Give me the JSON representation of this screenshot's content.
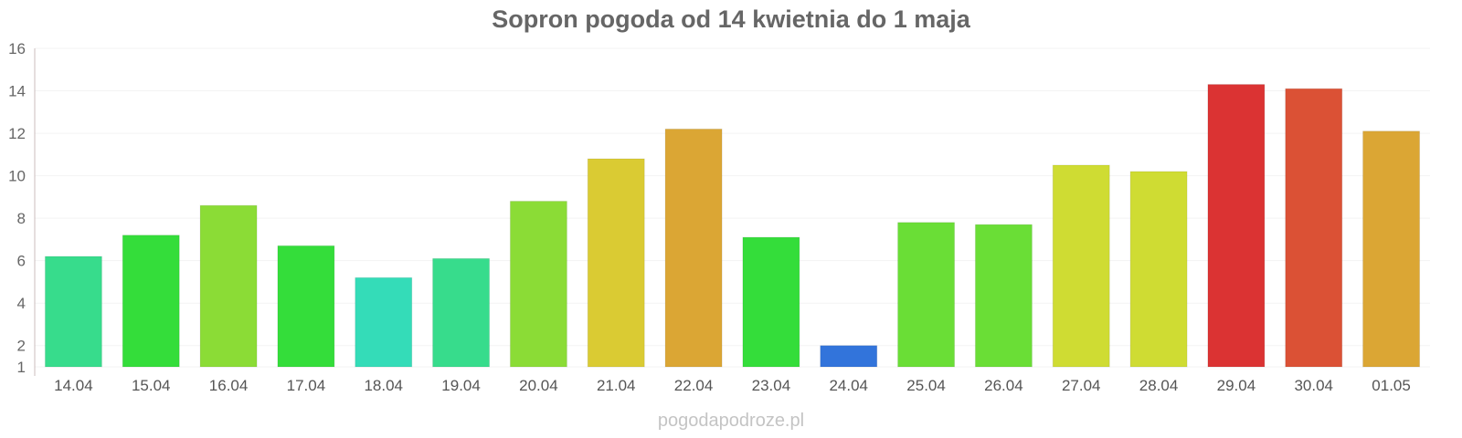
{
  "credit": "pogodapodroze.pl",
  "chart_data": {
    "type": "bar",
    "title": "Sopron pogoda od 14 kwietnia do 1 maja",
    "xlabel": "",
    "ylabel": "",
    "ylim": [
      1,
      16
    ],
    "yticks": [
      1,
      2,
      4,
      6,
      8,
      10,
      12,
      14,
      16
    ],
    "grid": true,
    "categories": [
      "14.04",
      "15.04",
      "16.04",
      "17.04",
      "18.04",
      "19.04",
      "20.04",
      "21.04",
      "22.04",
      "23.04",
      "24.04",
      "25.04",
      "26.04",
      "27.04",
      "28.04",
      "29.04",
      "30.04",
      "01.05"
    ],
    "values": [
      6.2,
      7.2,
      8.6,
      6.7,
      5.2,
      6.1,
      8.8,
      10.8,
      12.2,
      7.1,
      2.0,
      7.8,
      7.7,
      10.5,
      10.2,
      14.3,
      14.1,
      12.1
    ],
    "colors": [
      "#37dc8c",
      "#34dd3a",
      "#8bdc36",
      "#34dd3a",
      "#34dcb8",
      "#37dc8c",
      "#8bdc36",
      "#dacb33",
      "#dba634",
      "#34dd3a",
      "#3274db",
      "#6ade36",
      "#6ade36",
      "#cfdc33",
      "#cfdc33",
      "#db3333",
      "#db5135",
      "#dba634"
    ]
  }
}
